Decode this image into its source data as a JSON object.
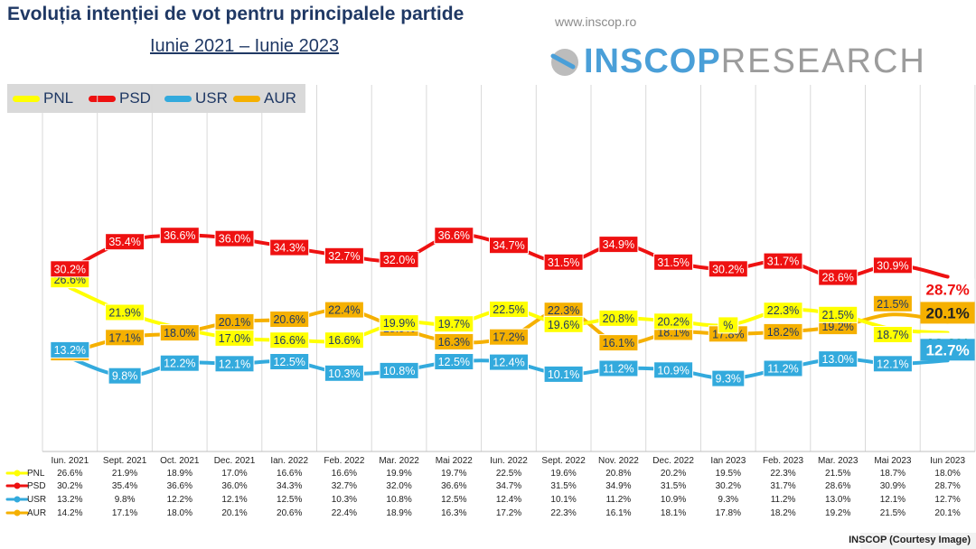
{
  "header": {
    "title": "Evoluția intenției de vot pentru principalele partide",
    "subtitle": "Iunie 2021 – Iunie 2023",
    "site": "www.inscop.ro",
    "logo_bold": "INSCOP",
    "logo_regular": "RESEARCH"
  },
  "footer": {
    "credit": "INSCOP (Courtesy Image)"
  },
  "colors": {
    "PNL": "#ffff00",
    "PSD": "#ee1111",
    "USR": "#33aadd",
    "AUR": "#f5b000"
  },
  "chart_data": {
    "type": "line",
    "title": "Evoluția intenției de vot pentru principalele partide",
    "subtitle": "Iunie 2021 – Iunie 2023",
    "categories": [
      "Iun. 2021",
      "Sept. 2021",
      "Oct. 2021",
      "Dec. 2021",
      "Ian. 2022",
      "Feb. 2022",
      "Mar. 2022",
      "Mai 2022",
      "Iun. 2022",
      "Sept. 2022",
      "Nov. 2022",
      "Dec. 2022",
      "Ian 2023",
      "Feb. 2023",
      "Mar. 2023",
      "Mai 2023",
      "Iun 2023"
    ],
    "ylim": [
      0,
      45
    ],
    "legend_position": "top-left",
    "series": [
      {
        "name": "PNL",
        "values": [
          26.6,
          21.9,
          18.9,
          17.0,
          16.6,
          16.6,
          19.9,
          19.7,
          22.5,
          19.6,
          20.8,
          20.2,
          19.5,
          22.3,
          21.5,
          18.7,
          18.0
        ],
        "labels": [
          "26.6%",
          "21.9%",
          "",
          "17.0%",
          "16.6%",
          "16.6%",
          "19.9%",
          "19.7%",
          "22.5%",
          "19.6%",
          "20.8%",
          "20.2%",
          "%",
          "22.3%",
          "21.5%",
          "18.7%",
          "18.0%"
        ]
      },
      {
        "name": "PSD",
        "values": [
          30.2,
          35.4,
          36.6,
          36.0,
          34.3,
          32.7,
          32.0,
          36.6,
          34.7,
          31.5,
          34.9,
          31.5,
          30.2,
          31.7,
          28.6,
          30.9,
          28.7
        ],
        "labels": [
          "30.2%",
          "35.4%",
          "36.6%",
          "36.0%",
          "34.3%",
          "32.7%",
          "32.0%",
          "36.6%",
          "34.7%",
          "31.5%",
          "34.9%",
          "31.5%",
          "30.2%",
          "31.7%",
          "28.6%",
          "30.9%",
          "28.7%"
        ]
      },
      {
        "name": "USR",
        "values": [
          13.2,
          9.8,
          12.2,
          12.1,
          12.5,
          10.3,
          10.8,
          12.5,
          12.4,
          10.1,
          11.2,
          10.9,
          9.3,
          11.2,
          13.0,
          12.1,
          12.7
        ],
        "labels": [
          "13.2%",
          "9.8%",
          "12.2%",
          "12.1%",
          "12.5%",
          "10.3%",
          "10.8%",
          "12.5%",
          "12.4%",
          "10.1%",
          "11.2%",
          "10.9%",
          "9.3%",
          "11.2%",
          "13.0%",
          "12.1%",
          "12.7%"
        ]
      },
      {
        "name": "AUR",
        "values": [
          14.2,
          17.1,
          18.0,
          20.1,
          20.6,
          22.4,
          18.9,
          16.3,
          17.2,
          22.3,
          16.1,
          18.1,
          17.8,
          18.2,
          19.2,
          21.5,
          20.1
        ],
        "labels": [
          "14.2%",
          "17.1%",
          "18.0%",
          "20.1%",
          "20.6%",
          "22.4%",
          "18.9%",
          "16.3%",
          "17.2%",
          "22.3%",
          "16.1%",
          "18.1%",
          "17.8%",
          "18.2%",
          "19.2%",
          "21.5%",
          "20.1%"
        ]
      }
    ],
    "table": {
      "headers": [
        "Iun. 2021",
        "Sept. 2021",
        "Oct. 2021",
        "Dec. 2021",
        "Ian. 2022",
        "Feb. 2022",
        "Mar. 2022",
        "Mai 2022",
        "Iun. 2022",
        "Sept. 2022",
        "Nov. 2022",
        "Dec. 2022",
        "Ian 2023",
        "Feb. 2023",
        "Mar. 2023",
        "Mai 2023",
        "Iun 2023"
      ],
      "rows": [
        {
          "name": "PNL",
          "cells": [
            "26.6%",
            "21.9%",
            "18.9%",
            "17.0%",
            "16.6%",
            "16.6%",
            "19.9%",
            "19.7%",
            "22.5%",
            "19.6%",
            "20.8%",
            "20.2%",
            "19.5%",
            "22.3%",
            "21.5%",
            "18.7%",
            "18.0%"
          ]
        },
        {
          "name": "PSD",
          "cells": [
            "30.2%",
            "35.4%",
            "36.6%",
            "36.0%",
            "34.3%",
            "32.7%",
            "32.0%",
            "36.6%",
            "34.7%",
            "31.5%",
            "34.9%",
            "31.5%",
            "30.2%",
            "31.7%",
            "28.6%",
            "30.9%",
            "28.7%"
          ]
        },
        {
          "name": "USR",
          "cells": [
            "13.2%",
            "9.8%",
            "12.2%",
            "12.1%",
            "12.5%",
            "10.3%",
            "10.8%",
            "12.5%",
            "12.4%",
            "10.1%",
            "11.2%",
            "10.9%",
            "9.3%",
            "11.2%",
            "13.0%",
            "12.1%",
            "12.7%"
          ]
        },
        {
          "name": "AUR",
          "cells": [
            "14.2%",
            "17.1%",
            "18.0%",
            "20.1%",
            "20.6%",
            "22.4%",
            "18.9%",
            "16.3%",
            "17.2%",
            "22.3%",
            "16.1%",
            "18.1%",
            "17.8%",
            "18.2%",
            "19.2%",
            "21.5%",
            "20.1%"
          ]
        }
      ]
    }
  }
}
